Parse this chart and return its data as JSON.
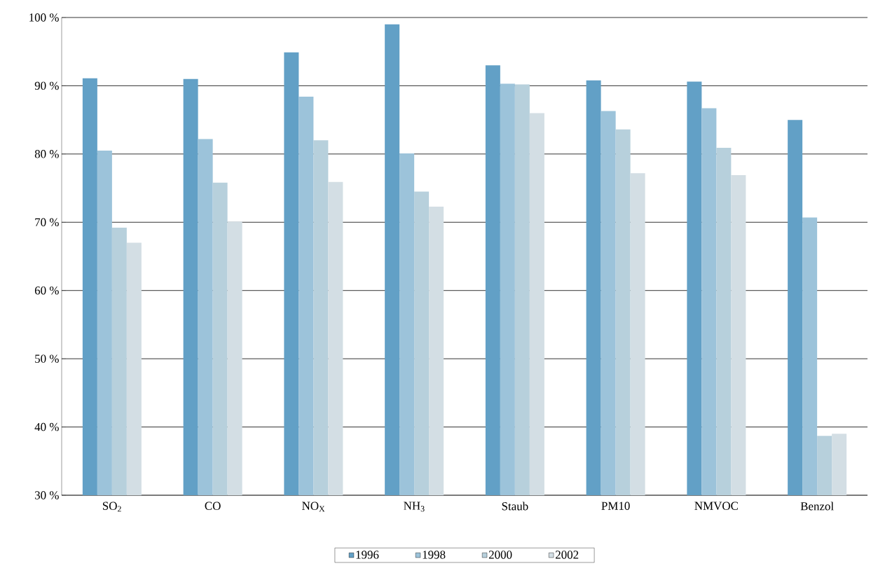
{
  "chart_data": {
    "type": "bar",
    "categories": [
      "SO$_{2}$",
      "CO",
      "NO$_{X}$",
      "NH$_{3}$",
      "Staub",
      "PM10",
      "NMVOC",
      "Benzol"
    ],
    "series": [
      {
        "name": "1996",
        "color": "#62a0c6",
        "values": [
          91.1,
          91.0,
          94.9,
          99.0,
          93.0,
          90.8,
          90.6,
          85.0
        ]
      },
      {
        "name": "1998",
        "color": "#9cc3da",
        "values": [
          80.5,
          82.2,
          88.4,
          80.1,
          90.3,
          86.3,
          86.7,
          70.7
        ]
      },
      {
        "name": "2000",
        "color": "#b7d0dc",
        "values": [
          69.2,
          75.8,
          82.0,
          74.5,
          90.2,
          83.6,
          80.9,
          38.7
        ]
      },
      {
        "name": "2002",
        "color": "#d3dee4",
        "values": [
          67.0,
          70.1,
          75.9,
          72.3,
          86.0,
          77.2,
          76.9,
          39.0
        ]
      }
    ],
    "ylim": [
      30,
      100
    ],
    "yticks": [
      {
        "value": 30,
        "label": "30 %"
      },
      {
        "value": 40,
        "label": "40 %"
      },
      {
        "value": 50,
        "label": "50 %"
      },
      {
        "value": 60,
        "label": "60 %"
      },
      {
        "value": 70,
        "label": "70 %"
      },
      {
        "value": 80,
        "label": "80 %"
      },
      {
        "value": 90,
        "label": "90 %"
      },
      {
        "value": 100,
        "label": "100 %"
      }
    ],
    "grid": "y",
    "legend": "bottom"
  }
}
